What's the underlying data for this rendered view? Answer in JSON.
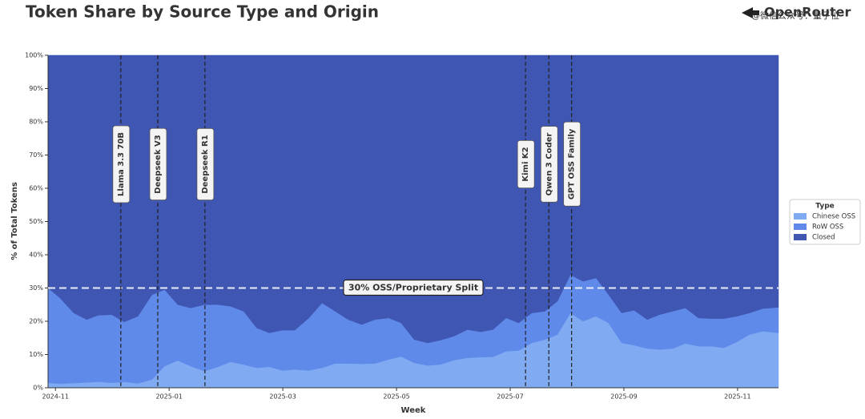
{
  "chart_data": {
    "type": "stacked_area",
    "title": "Token Share by Source Type and Origin",
    "brand": "OpenRouter",
    "watermark": "@微信公众号：量子位",
    "xlabel": "Week",
    "ylabel": "% of Total Tokens",
    "x": [
      -0.13,
      0.08,
      0.32,
      0.55,
      0.75,
      0.99,
      1.21,
      1.45,
      1.7,
      1.92,
      2.15,
      2.38,
      2.62,
      2.86,
      3.08,
      3.31,
      3.54,
      3.76,
      3.99,
      4.21,
      4.46,
      4.69,
      4.92,
      5.15,
      5.39,
      5.62,
      5.86,
      6.08,
      6.31,
      6.55,
      6.77,
      7.01,
      7.25,
      7.48,
      7.7,
      7.93,
      8.15,
      8.38,
      8.61,
      8.83,
      9.06,
      9.28,
      9.51,
      9.73,
      9.96,
      10.18,
      10.41,
      10.63,
      10.86,
      11.08,
      11.31,
      11.54,
      11.76,
      11.99,
      12.21,
      12.44,
      12.72
    ],
    "series": [
      {
        "name": "Chinese OSS",
        "color": "#80aaf2",
        "values": [
          1.5,
          1.2,
          1.4,
          1.6,
          1.8,
          1.5,
          1.8,
          1.3,
          2.5,
          6.5,
          8.2,
          6.5,
          5,
          6.3,
          7.8,
          7,
          6,
          6.3,
          5.2,
          5.5,
          5.2,
          6,
          7.3,
          7.3,
          7.2,
          7.3,
          8.5,
          9.4,
          7.5,
          6.7,
          7,
          8.3,
          9,
          9.2,
          9.3,
          11,
          11.2,
          13.5,
          14.5,
          16,
          22.5,
          20,
          21.5,
          19.5,
          13.5,
          12.8,
          11.8,
          11.5,
          11.8,
          13.3,
          12.5,
          12.5,
          12,
          13.8,
          16,
          17,
          16.5
        ]
      },
      {
        "name": "RoW OSS",
        "color": "#5f8ae9",
        "values": [
          28.5,
          25.8,
          21.1,
          18.9,
          20,
          20.5,
          18,
          20.2,
          25.5,
          23,
          16.8,
          17.5,
          20,
          18.7,
          16.7,
          16,
          12,
          10.2,
          12.1,
          11.8,
          15.8,
          19.5,
          15.7,
          13.2,
          11.8,
          13.2,
          12.5,
          10.1,
          7,
          6.8,
          7.3,
          7.2,
          8.5,
          7.6,
          8.2,
          10,
          8.3,
          9,
          8.5,
          10,
          11.5,
          12,
          11.5,
          8.5,
          9,
          10.5,
          8.7,
          10.5,
          11.2,
          10.7,
          8.5,
          8.3,
          8.8,
          7.7,
          6.5,
          6.8,
          7.7
        ]
      },
      {
        "name": "Closed",
        "color": "#3f56b3",
        "values": [
          70,
          73,
          77.5,
          79.5,
          78.2,
          78,
          80.2,
          78.5,
          72,
          70.5,
          75,
          76,
          75,
          75,
          75.5,
          77,
          82,
          83.5,
          82.7,
          82.7,
          79,
          74.5,
          77,
          79.5,
          81,
          79.5,
          79,
          80.5,
          85.5,
          86.5,
          85.7,
          84.5,
          82.5,
          83.2,
          82.5,
          79,
          80.5,
          77.5,
          77,
          74,
          66,
          68,
          67,
          72,
          77.5,
          76.7,
          79.5,
          78,
          77,
          76,
          79,
          79.2,
          79.2,
          78.5,
          77.5,
          76.2,
          75.8
        ]
      }
    ],
    "xlim": [
      -0.13,
      12.72
    ],
    "xticks": [
      {
        "value": 0,
        "label": "2024-11"
      },
      {
        "value": 2,
        "label": "2025-01"
      },
      {
        "value": 4,
        "label": "2025-03"
      },
      {
        "value": 6,
        "label": "2025-05"
      },
      {
        "value": 8,
        "label": "2025-07"
      },
      {
        "value": 10,
        "label": "2025-09"
      },
      {
        "value": 12,
        "label": "2025-11"
      }
    ],
    "ylim": [
      0,
      100
    ],
    "yticks": [
      {
        "value": 0,
        "label": "0%"
      },
      {
        "value": 10,
        "label": "10%"
      },
      {
        "value": 20,
        "label": "20%"
      },
      {
        "value": 30,
        "label": "30%"
      },
      {
        "value": 40,
        "label": "40%"
      },
      {
        "value": 50,
        "label": "50%"
      },
      {
        "value": 60,
        "label": "60%"
      },
      {
        "value": 70,
        "label": "70%"
      },
      {
        "value": 80,
        "label": "80%"
      },
      {
        "value": 90,
        "label": "90%"
      },
      {
        "value": 100,
        "label": "100%"
      }
    ],
    "events": [
      {
        "label": "Llama 3.3 70B",
        "x": 1.15
      },
      {
        "label": "Deepseek V3",
        "x": 1.8
      },
      {
        "label": "Deepseek R1",
        "x": 2.63
      },
      {
        "label": "Kimi K2",
        "x": 8.27
      },
      {
        "label": "Qwen 3 Coder",
        "x": 8.68
      },
      {
        "label": "GPT OSS Family",
        "x": 9.08
      }
    ],
    "reference_line": {
      "value": 30,
      "label": "30% OSS/Proprietary Split"
    },
    "legend": {
      "title": "Type",
      "position": "right"
    }
  }
}
